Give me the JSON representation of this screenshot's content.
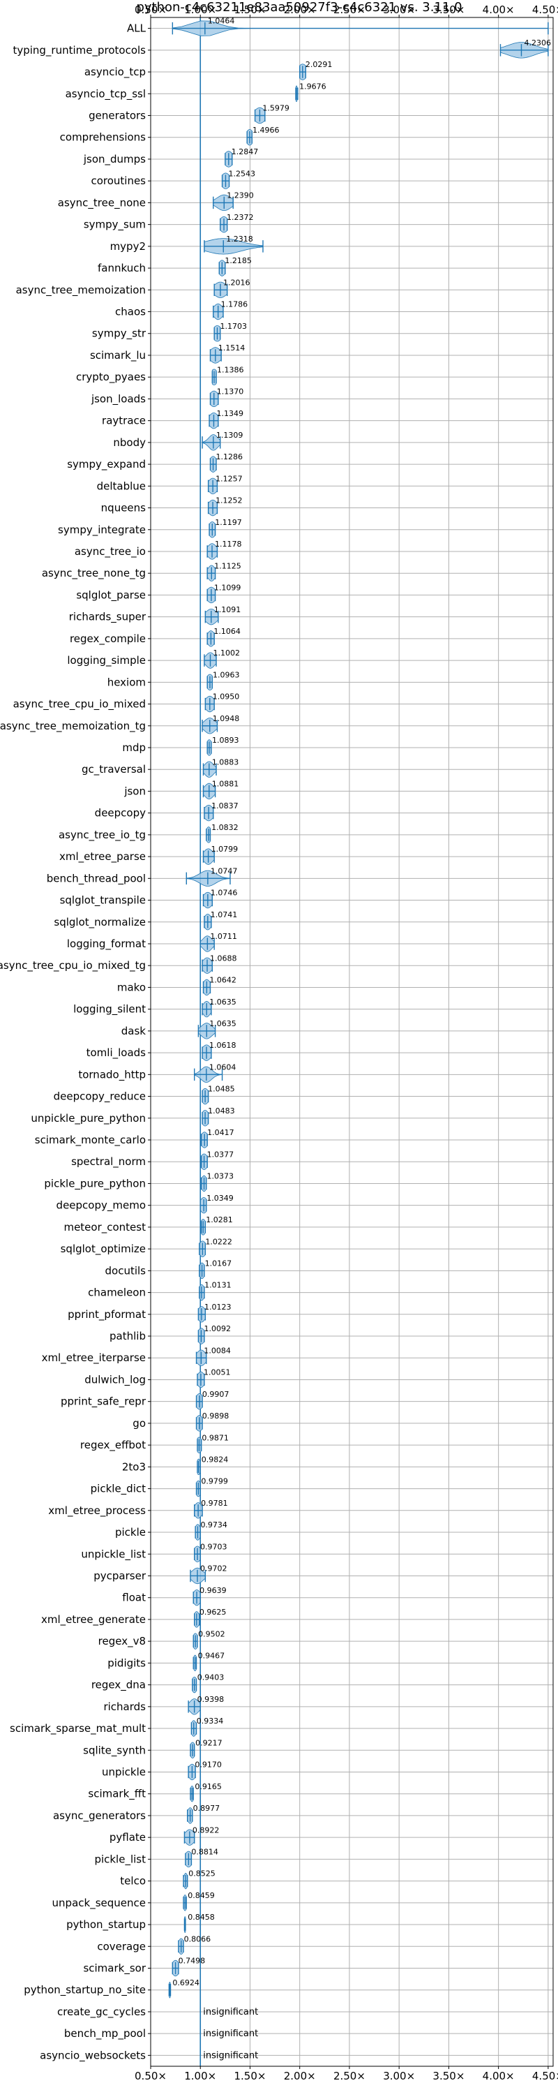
{
  "chart_data": {
    "type": "violin",
    "title": "python-c4c63211e83aa50927f3-c4c6321 vs. 3.11.0",
    "xlabel": "",
    "ylabel": "",
    "xlim": [
      0.5,
      4.55
    ],
    "xticks": [
      0.5,
      1.0,
      1.5,
      2.0,
      2.5,
      3.0,
      3.5,
      4.0,
      4.5
    ],
    "xtick_labels": [
      "0.50×",
      "1.00×",
      "1.50×",
      "2.00×",
      "2.50×",
      "3.00×",
      "3.50×",
      "4.00×",
      "4.50×"
    ],
    "ticks_top_and_bottom": true,
    "reference_line": 1.0,
    "grid": true,
    "color": "#1f77b4",
    "fill_color": "#a6cbe8",
    "benchmarks": [
      {
        "name": "ALL",
        "value": 1.0464,
        "label": "1.0464",
        "min": 0.72,
        "max": 4.5,
        "spread": 0.15
      },
      {
        "name": "typing_runtime_protocols",
        "value": 4.2306,
        "label": "4.2306",
        "min": 4.02,
        "max": 4.5,
        "spread": 0.15
      },
      {
        "name": "asyncio_tcp",
        "value": 2.0291,
        "label": "2.0291",
        "min": 2.0,
        "max": 2.06,
        "spread": 0.05
      },
      {
        "name": "asyncio_tcp_ssl",
        "value": 1.9676,
        "label": "1.9676",
        "min": 1.96,
        "max": 1.98,
        "spread": 0.012
      },
      {
        "name": "generators",
        "value": 1.5979,
        "label": "1.5979",
        "min": 1.55,
        "max": 1.65,
        "spread": 0.06
      },
      {
        "name": "comprehensions",
        "value": 1.4966,
        "label": "1.4966",
        "min": 1.47,
        "max": 1.52,
        "spread": 0.04
      },
      {
        "name": "json_dumps",
        "value": 1.2847,
        "label": "1.2847",
        "min": 1.25,
        "max": 1.32,
        "spread": 0.05
      },
      {
        "name": "coroutines",
        "value": 1.2543,
        "label": "1.2543",
        "min": 1.22,
        "max": 1.29,
        "spread": 0.05
      },
      {
        "name": "async_tree_none",
        "value": 1.239,
        "label": "1.2390",
        "min": 1.13,
        "max": 1.33,
        "spread": 0.08
      },
      {
        "name": "sympy_sum",
        "value": 1.2372,
        "label": "1.2372",
        "min": 1.2,
        "max": 1.27,
        "spread": 0.05
      },
      {
        "name": "mypy2",
        "value": 1.2318,
        "label": "1.2318",
        "min": 1.04,
        "max": 1.63,
        "spread": 0.2
      },
      {
        "name": "fannkuch",
        "value": 1.2185,
        "label": "1.2185",
        "min": 1.19,
        "max": 1.25,
        "spread": 0.04
      },
      {
        "name": "async_tree_memoization",
        "value": 1.2016,
        "label": "1.2016",
        "min": 1.14,
        "max": 1.27,
        "spread": 0.07
      },
      {
        "name": "chaos",
        "value": 1.1786,
        "label": "1.1786",
        "min": 1.13,
        "max": 1.23,
        "spread": 0.05
      },
      {
        "name": "sympy_str",
        "value": 1.1703,
        "label": "1.1703",
        "min": 1.14,
        "max": 1.2,
        "spread": 0.05
      },
      {
        "name": "scimark_lu",
        "value": 1.1514,
        "label": "1.1514",
        "min": 1.1,
        "max": 1.21,
        "spread": 0.06
      },
      {
        "name": "crypto_pyaes",
        "value": 1.1386,
        "label": "1.1386",
        "min": 1.12,
        "max": 1.16,
        "spread": 0.04
      },
      {
        "name": "json_loads",
        "value": 1.137,
        "label": "1.1370",
        "min": 1.1,
        "max": 1.18,
        "spread": 0.05
      },
      {
        "name": "raytrace",
        "value": 1.1349,
        "label": "1.1349",
        "min": 1.09,
        "max": 1.18,
        "spread": 0.05
      },
      {
        "name": "nbody",
        "value": 1.1309,
        "label": "1.1309",
        "min": 1.02,
        "max": 1.2,
        "spread": 0.05
      },
      {
        "name": "sympy_expand",
        "value": 1.1286,
        "label": "1.1286",
        "min": 1.1,
        "max": 1.16,
        "spread": 0.04
      },
      {
        "name": "deltablue",
        "value": 1.1257,
        "label": "1.1257",
        "min": 1.08,
        "max": 1.17,
        "spread": 0.05
      },
      {
        "name": "nqueens",
        "value": 1.1252,
        "label": "1.1252",
        "min": 1.08,
        "max": 1.17,
        "spread": 0.05
      },
      {
        "name": "sympy_integrate",
        "value": 1.1197,
        "label": "1.1197",
        "min": 1.09,
        "max": 1.15,
        "spread": 0.04
      },
      {
        "name": "async_tree_io",
        "value": 1.1178,
        "label": "1.1178",
        "min": 1.07,
        "max": 1.17,
        "spread": 0.05
      },
      {
        "name": "async_tree_none_tg",
        "value": 1.1125,
        "label": "1.1125",
        "min": 1.07,
        "max": 1.15,
        "spread": 0.04
      },
      {
        "name": "sqlglot_parse",
        "value": 1.1099,
        "label": "1.1099",
        "min": 1.07,
        "max": 1.15,
        "spread": 0.05
      },
      {
        "name": "richards_super",
        "value": 1.1091,
        "label": "1.1091",
        "min": 1.05,
        "max": 1.18,
        "spread": 0.06
      },
      {
        "name": "regex_compile",
        "value": 1.1064,
        "label": "1.1064",
        "min": 1.07,
        "max": 1.14,
        "spread": 0.04
      },
      {
        "name": "logging_simple",
        "value": 1.1002,
        "label": "1.1002",
        "min": 1.04,
        "max": 1.16,
        "spread": 0.05
      },
      {
        "name": "hexiom",
        "value": 1.0963,
        "label": "1.0963",
        "min": 1.07,
        "max": 1.12,
        "spread": 0.04
      },
      {
        "name": "async_tree_cpu_io_mixed",
        "value": 1.095,
        "label": "1.0950",
        "min": 1.05,
        "max": 1.14,
        "spread": 0.05
      },
      {
        "name": "async_tree_memoization_tg",
        "value": 1.0948,
        "label": "1.0948",
        "min": 1.02,
        "max": 1.17,
        "spread": 0.06
      },
      {
        "name": "mdp",
        "value": 1.0893,
        "label": "1.0893",
        "min": 1.07,
        "max": 1.11,
        "spread": 0.03
      },
      {
        "name": "gc_traversal",
        "value": 1.0883,
        "label": "1.0883",
        "min": 1.03,
        "max": 1.16,
        "spread": 0.05
      },
      {
        "name": "json",
        "value": 1.0881,
        "label": "1.0881",
        "min": 1.03,
        "max": 1.15,
        "spread": 0.05
      },
      {
        "name": "deepcopy",
        "value": 1.0837,
        "label": "1.0837",
        "min": 1.04,
        "max": 1.13,
        "spread": 0.05
      },
      {
        "name": "async_tree_io_tg",
        "value": 1.0832,
        "label": "1.0832",
        "min": 1.06,
        "max": 1.1,
        "spread": 0.03
      },
      {
        "name": "xml_etree_parse",
        "value": 1.0799,
        "label": "1.0799",
        "min": 1.03,
        "max": 1.14,
        "spread": 0.05
      },
      {
        "name": "bench_thread_pool",
        "value": 1.0747,
        "label": "1.0747",
        "min": 0.86,
        "max": 1.3,
        "spread": 0.09
      },
      {
        "name": "sqlglot_transpile",
        "value": 1.0746,
        "label": "1.0746",
        "min": 1.03,
        "max": 1.12,
        "spread": 0.05
      },
      {
        "name": "sqlglot_normalize",
        "value": 1.0741,
        "label": "1.0741",
        "min": 1.04,
        "max": 1.11,
        "spread": 0.04
      },
      {
        "name": "logging_format",
        "value": 1.0711,
        "label": "1.0711",
        "min": 1.0,
        "max": 1.14,
        "spread": 0.05
      },
      {
        "name": "async_tree_cpu_io_mixed_tg",
        "value": 1.0688,
        "label": "1.0688",
        "min": 1.02,
        "max": 1.12,
        "spread": 0.05
      },
      {
        "name": "mako",
        "value": 1.0642,
        "label": "1.0642",
        "min": 1.03,
        "max": 1.1,
        "spread": 0.04
      },
      {
        "name": "logging_silent",
        "value": 1.0635,
        "label": "1.0635",
        "min": 1.02,
        "max": 1.11,
        "spread": 0.04
      },
      {
        "name": "dask",
        "value": 1.0635,
        "label": "1.0635",
        "min": 0.98,
        "max": 1.15,
        "spread": 0.06
      },
      {
        "name": "tomli_loads",
        "value": 1.0618,
        "label": "1.0618",
        "min": 1.02,
        "max": 1.11,
        "spread": 0.05
      },
      {
        "name": "tornado_http",
        "value": 1.0604,
        "label": "1.0604",
        "min": 0.94,
        "max": 1.22,
        "spread": 0.06
      },
      {
        "name": "deepcopy_reduce",
        "value": 1.0485,
        "label": "1.0485",
        "min": 1.02,
        "max": 1.08,
        "spread": 0.04
      },
      {
        "name": "unpickle_pure_python",
        "value": 1.0483,
        "label": "1.0483",
        "min": 1.02,
        "max": 1.08,
        "spread": 0.04
      },
      {
        "name": "scimark_monte_carlo",
        "value": 1.0417,
        "label": "1.0417",
        "min": 1.01,
        "max": 1.07,
        "spread": 0.04
      },
      {
        "name": "spectral_norm",
        "value": 1.0377,
        "label": "1.0377",
        "min": 1.01,
        "max": 1.07,
        "spread": 0.04
      },
      {
        "name": "pickle_pure_python",
        "value": 1.0373,
        "label": "1.0373",
        "min": 1.01,
        "max": 1.06,
        "spread": 0.03
      },
      {
        "name": "deepcopy_memo",
        "value": 1.0349,
        "label": "1.0349",
        "min": 1.0,
        "max": 1.06,
        "spread": 0.04
      },
      {
        "name": "meteor_contest",
        "value": 1.0281,
        "label": "1.0281",
        "min": 1.01,
        "max": 1.05,
        "spread": 0.03
      },
      {
        "name": "sqlglot_optimize",
        "value": 1.0222,
        "label": "1.0222",
        "min": 0.99,
        "max": 1.05,
        "spread": 0.04
      },
      {
        "name": "docutils",
        "value": 1.0167,
        "label": "1.0167",
        "min": 0.99,
        "max": 1.04,
        "spread": 0.03
      },
      {
        "name": "chameleon",
        "value": 1.0131,
        "label": "1.0131",
        "min": 0.99,
        "max": 1.04,
        "spread": 0.03
      },
      {
        "name": "pprint_pformat",
        "value": 1.0123,
        "label": "1.0123",
        "min": 0.98,
        "max": 1.05,
        "spread": 0.04
      },
      {
        "name": "pathlib",
        "value": 1.0092,
        "label": "1.0092",
        "min": 0.98,
        "max": 1.04,
        "spread": 0.04
      },
      {
        "name": "xml_etree_iterparse",
        "value": 1.0084,
        "label": "1.0084",
        "min": 0.96,
        "max": 1.06,
        "spread": 0.05
      },
      {
        "name": "dulwich_log",
        "value": 1.0051,
        "label": "1.0051",
        "min": 0.97,
        "max": 1.04,
        "spread": 0.04
      },
      {
        "name": "pprint_safe_repr",
        "value": 0.9907,
        "label": "0.9907",
        "min": 0.96,
        "max": 1.02,
        "spread": 0.04
      },
      {
        "name": "go",
        "value": 0.9898,
        "label": "0.9898",
        "min": 0.96,
        "max": 1.02,
        "spread": 0.04
      },
      {
        "name": "regex_effbot",
        "value": 0.9871,
        "label": "0.9871",
        "min": 0.97,
        "max": 1.01,
        "spread": 0.03
      },
      {
        "name": "2to3",
        "value": 0.9824,
        "label": "0.9824",
        "min": 0.97,
        "max": 1.0,
        "spread": 0.02
      },
      {
        "name": "pickle_dict",
        "value": 0.9799,
        "label": "0.9799",
        "min": 0.96,
        "max": 1.0,
        "spread": 0.03
      },
      {
        "name": "xml_etree_process",
        "value": 0.9781,
        "label": "0.9781",
        "min": 0.94,
        "max": 1.02,
        "spread": 0.04
      },
      {
        "name": "pickle",
        "value": 0.9734,
        "label": "0.9734",
        "min": 0.95,
        "max": 1.0,
        "spread": 0.03
      },
      {
        "name": "unpickle_list",
        "value": 0.9703,
        "label": "0.9703",
        "min": 0.94,
        "max": 1.0,
        "spread": 0.04
      },
      {
        "name": "pycparser",
        "value": 0.9702,
        "label": "0.9702",
        "min": 0.9,
        "max": 1.05,
        "spread": 0.06
      },
      {
        "name": "float",
        "value": 0.9639,
        "label": "0.9639",
        "min": 0.93,
        "max": 1.0,
        "spread": 0.04
      },
      {
        "name": "xml_etree_generate",
        "value": 0.9625,
        "label": "0.9625",
        "min": 0.94,
        "max": 0.99,
        "spread": 0.03
      },
      {
        "name": "regex_v8",
        "value": 0.9502,
        "label": "0.9502",
        "min": 0.93,
        "max": 0.97,
        "spread": 0.03
      },
      {
        "name": "pidigits",
        "value": 0.9467,
        "label": "0.9467",
        "min": 0.93,
        "max": 0.96,
        "spread": 0.02
      },
      {
        "name": "regex_dna",
        "value": 0.9403,
        "label": "0.9403",
        "min": 0.92,
        "max": 0.96,
        "spread": 0.03
      },
      {
        "name": "richards",
        "value": 0.9398,
        "label": "0.9398",
        "min": 0.88,
        "max": 1.0,
        "spread": 0.05
      },
      {
        "name": "scimark_sparse_mat_mult",
        "value": 0.9334,
        "label": "0.9334",
        "min": 0.91,
        "max": 0.96,
        "spread": 0.03
      },
      {
        "name": "sqlite_synth",
        "value": 0.9217,
        "label": "0.9217",
        "min": 0.9,
        "max": 0.94,
        "spread": 0.03
      },
      {
        "name": "unpickle",
        "value": 0.917,
        "label": "0.9170",
        "min": 0.88,
        "max": 0.95,
        "spread": 0.04
      },
      {
        "name": "scimark_fft",
        "value": 0.9165,
        "label": "0.9165",
        "min": 0.9,
        "max": 0.93,
        "spread": 0.02
      },
      {
        "name": "async_generators",
        "value": 0.8977,
        "label": "0.8977",
        "min": 0.87,
        "max": 0.92,
        "spread": 0.03
      },
      {
        "name": "pyflate",
        "value": 0.8922,
        "label": "0.8922",
        "min": 0.84,
        "max": 0.94,
        "spread": 0.05
      },
      {
        "name": "pickle_list",
        "value": 0.8814,
        "label": "0.8814",
        "min": 0.85,
        "max": 0.91,
        "spread": 0.04
      },
      {
        "name": "telco",
        "value": 0.8525,
        "label": "0.8525",
        "min": 0.83,
        "max": 0.87,
        "spread": 0.02
      },
      {
        "name": "unpack_sequence",
        "value": 0.8459,
        "label": "0.8459",
        "min": 0.83,
        "max": 0.86,
        "spread": 0.02
      },
      {
        "name": "python_startup",
        "value": 0.8458,
        "label": "0.8458",
        "min": 0.84,
        "max": 0.85,
        "spread": 0.012
      },
      {
        "name": "coverage",
        "value": 0.8066,
        "label": "0.8066",
        "min": 0.78,
        "max": 0.83,
        "spread": 0.03
      },
      {
        "name": "scimark_sor",
        "value": 0.7498,
        "label": "0.7498",
        "min": 0.72,
        "max": 0.78,
        "spread": 0.04
      },
      {
        "name": "python_startup_no_site",
        "value": 0.6924,
        "label": "0.6924",
        "min": 0.685,
        "max": 0.7,
        "spread": 0.01
      },
      {
        "name": "create_gc_cycles",
        "value": null,
        "label": "insignificant"
      },
      {
        "name": "bench_mp_pool",
        "value": null,
        "label": "insignificant"
      },
      {
        "name": "asyncio_websockets",
        "value": null,
        "label": "insignificant"
      }
    ]
  }
}
